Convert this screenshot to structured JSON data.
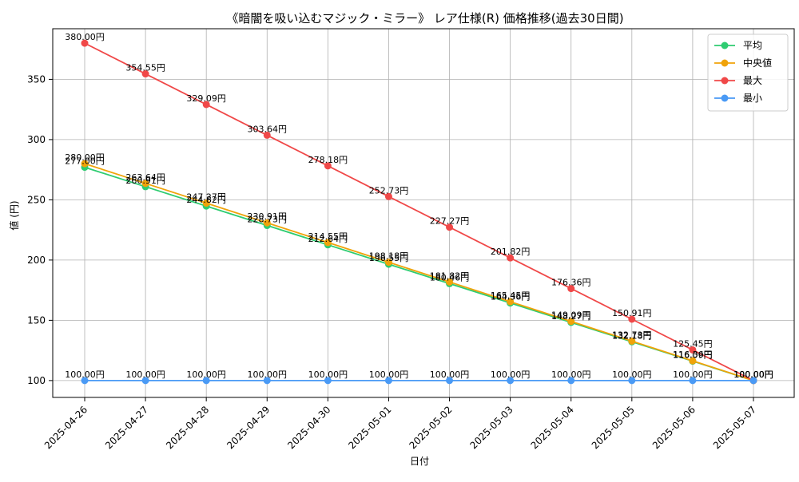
{
  "chart_data": {
    "type": "line",
    "title": "《暗闇を吸い込むマジック・ミラー》 レア仕様(R) 価格推移(過去30日間)",
    "xlabel": "日付",
    "ylabel": "値 (円)",
    "x": [
      "2025-04-26",
      "2025-04-27",
      "2025-04-28",
      "2025-04-29",
      "2025-04-30",
      "2025-05-01",
      "2025-05-02",
      "2025-05-03",
      "2025-05-04",
      "2025-05-05",
      "2025-05-06",
      "2025-05-07"
    ],
    "ylim": [
      86,
      392
    ],
    "yticks": [
      100,
      150,
      200,
      250,
      300,
      350
    ],
    "grid": true,
    "legend_position": "top-right",
    "label_suffix": "円",
    "series": [
      {
        "name": "平均",
        "color": "#2ecc71",
        "values": [
          277.0,
          260.91,
          244.82,
          228.73,
          212.64,
          196.55,
          180.46,
          164.36,
          148.27,
          132.18,
          116.09,
          100.0
        ]
      },
      {
        "name": "中央値",
        "color": "#f0a30a",
        "values": [
          280.0,
          263.64,
          247.27,
          230.91,
          214.55,
          198.18,
          181.82,
          165.45,
          149.09,
          132.73,
          116.36,
          100.0
        ]
      },
      {
        "name": "最大",
        "color": "#f04848",
        "values": [
          380.0,
          354.55,
          329.09,
          303.64,
          278.18,
          252.73,
          227.27,
          201.82,
          176.36,
          150.91,
          125.45,
          100.0
        ]
      },
      {
        "name": "最小",
        "color": "#4a9af5",
        "values": [
          100.0,
          100.0,
          100.0,
          100.0,
          100.0,
          100.0,
          100.0,
          100.0,
          100.0,
          100.0,
          100.0,
          100.0
        ]
      }
    ]
  }
}
